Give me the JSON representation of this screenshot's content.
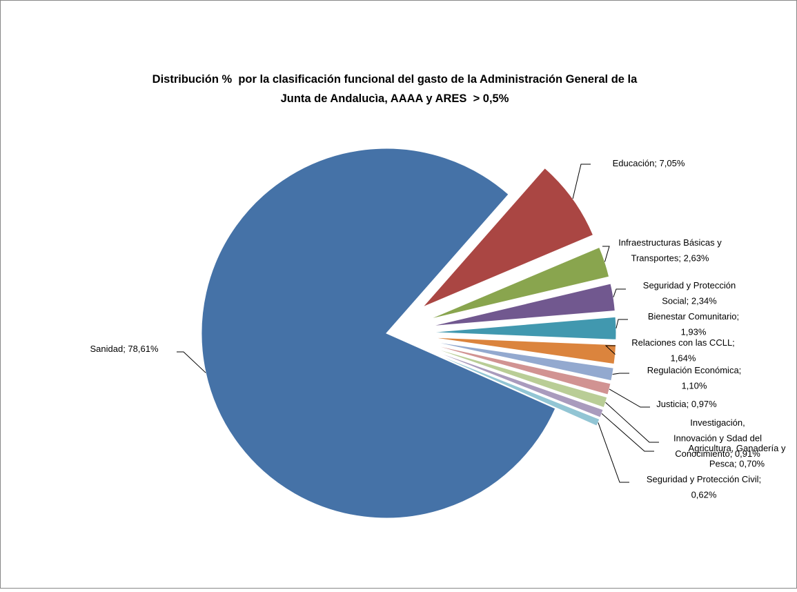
{
  "chart_data": {
    "type": "pie",
    "title": "Distribución %  por la clasificación funcional del gasto de la Administración General de la Junta de Andalucìa, AAAA y ARES  > 0,5%",
    "values": [
      78.61,
      7.05,
      2.63,
      2.34,
      1.93,
      1.64,
      1.1,
      0.97,
      0.91,
      0.7,
      0.62
    ],
    "value_labels": [
      "Sanidad; 78,61%",
      "Educación; 7,05%",
      "Infraestructuras Básicas y Transportes; 2,63%",
      "Seguridad y Protección Social; 2,34%",
      "Bienestar Comunitario; 1,93%",
      "Relaciones con las CCLL; 1,64%",
      "Regulación Económica; 1,10%",
      "Justicia; 0,97%",
      "Investigación, Innovación y Sdad del Conocimiento; 0,91%",
      "Agricultura, Ganadería y Pesca; 0,70%",
      "Seguridad y Protección Civil; 0,62%"
    ],
    "colors": [
      "#4572a7",
      "#aa4643",
      "#89a54e",
      "#71588f",
      "#4198af",
      "#db843d",
      "#93a9cf",
      "#d19392",
      "#b9cd96",
      "#a99bbd",
      "#92c5d4"
    ]
  }
}
